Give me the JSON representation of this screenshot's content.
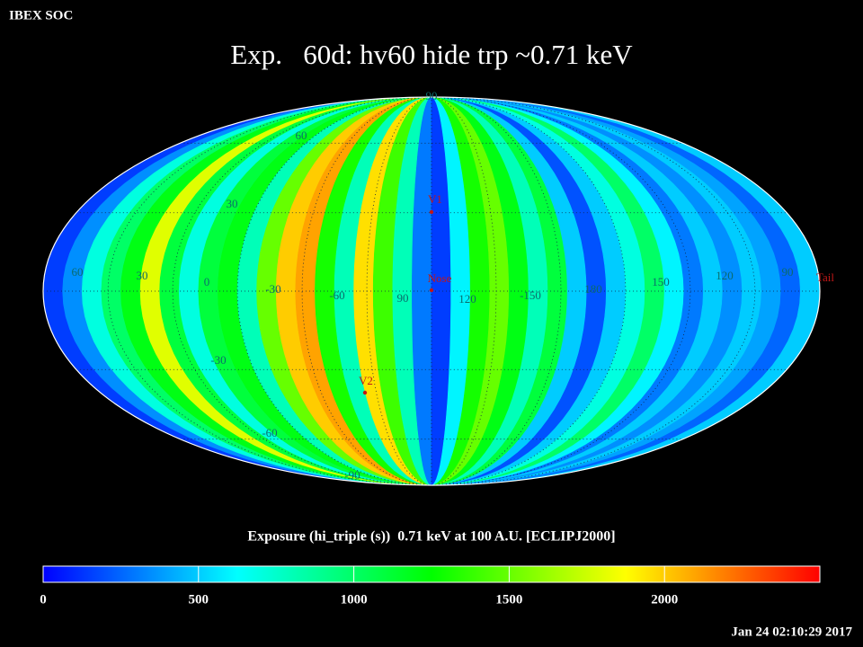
{
  "app": "IBEX SOC",
  "timestamp": "Jan 24 02:10:29 2017",
  "chart_data": {
    "type": "skymap",
    "title": "Exp.   60d: hv60 hide trp ~0.71 keV",
    "colorbar_label": "Exposure (hi_triple (s))  0.71 keV at 100 A.U. [ECLIPJ2000]",
    "values": [
      150,
      350,
      700,
      1000,
      1200,
      1800,
      1100,
      700,
      1100,
      1200,
      800,
      1500,
      2000,
      2100,
      1300,
      800,
      1950,
      1400,
      800,
      300,
      150,
      600,
      1300,
      1500,
      1200,
      800,
      1100,
      500,
      200,
      500,
      700,
      1000,
      600,
      300,
      500,
      350,
      500,
      400,
      250,
      500
    ],
    "zlim": [
      0,
      2500
    ],
    "zticks": [
      0,
      500,
      1000,
      1500,
      2000
    ],
    "colormap": [
      "#0000ff",
      "#00ffff",
      "#00ff00",
      "#ffff00",
      "#ff0000"
    ],
    "grid_labels": [
      "90",
      "60",
      "30",
      "60",
      "30",
      "0",
      "-30",
      "-60",
      "90",
      "120",
      "-150",
      "180",
      "150",
      "120",
      "90",
      "-30",
      "-60",
      "-90"
    ],
    "markers": [
      "V1",
      "Nose",
      "V2",
      "Tail"
    ]
  }
}
